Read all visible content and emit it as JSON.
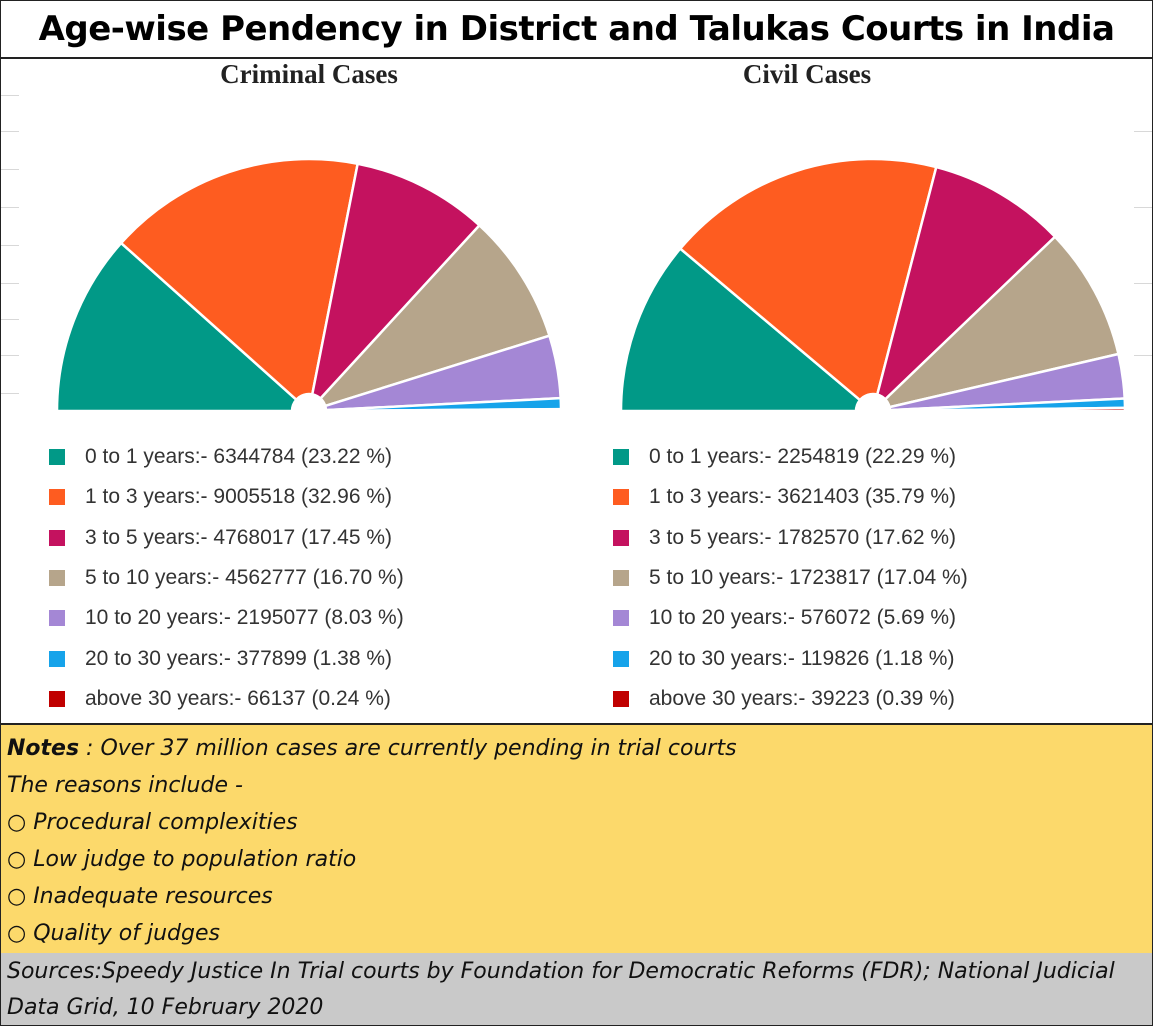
{
  "page": {
    "title": "Age-wise Pendency in District and Talukas Courts in India"
  },
  "chart_data": [
    {
      "type": "pie",
      "variant": "half-donut",
      "title": "Criminal  Cases",
      "categories": [
        "0 to 1 years",
        "1 to 3 years",
        "3 to 5 years",
        "5 to 10 years",
        "10 to 20 years",
        "20 to 30 years",
        "above 30 years"
      ],
      "values": [
        6344784,
        9005518,
        4768017,
        4562777,
        2195077,
        377899,
        66137
      ],
      "percents": [
        23.22,
        32.96,
        17.45,
        16.7,
        8.03,
        1.38,
        0.24
      ],
      "legend_labels": [
        "0 to 1 years:- 6344784 (23.22 %)",
        "1 to 3 years:- 9005518 (32.96 %)",
        "3 to 5 years:- 4768017 (17.45 %)",
        "5 to 10 years:- 4562777 (16.70 %)",
        "10 to 20 years:- 2195077 (8.03 %)",
        "20 to 30 years:- 377899 (1.38 %)",
        "above 30 years:- 66137 (0.24 %)"
      ],
      "colors": [
        "#019987",
        "#fe5c20",
        "#c4125f",
        "#b6a58b",
        "#a487d5",
        "#16a3ea",
        "#c00000"
      ],
      "legend": "bottom"
    },
    {
      "type": "pie",
      "variant": "half-donut",
      "title": "Civil Cases",
      "categories": [
        "0 to 1 years",
        "1 to 3 years",
        "3 to 5 years",
        "5 to 10 years",
        "10 to 20 years",
        "20 to 30 years",
        "above 30 years"
      ],
      "values": [
        2254819,
        3621403,
        1782570,
        1723817,
        576072,
        119826,
        39223
      ],
      "percents": [
        22.29,
        35.79,
        17.62,
        17.04,
        5.69,
        1.18,
        0.39
      ],
      "legend_labels": [
        "0 to 1 years:- 2254819 (22.29 %)",
        "1 to 3 years:- 3621403 (35.79 %)",
        "3 to 5 years:- 1782570 (17.62 %)",
        "5 to 10 years:- 1723817 (17.04 %)",
        "10 to 20 years:- 576072 (5.69 %)",
        "20 to 30 years:- 119826 (1.18 %)",
        "above 30 years:- 39223 (0.39 %)"
      ],
      "colors": [
        "#019987",
        "#fe5c20",
        "#c4125f",
        "#b6a58b",
        "#a487d5",
        "#16a3ea",
        "#c00000"
      ],
      "legend": "bottom"
    }
  ],
  "notes": {
    "label": "Notes",
    "text": " : Over 37 million cases are currently pending in trial courts",
    "reasons_intro": "The reasons include -",
    "reasons": [
      "○ Procedural complexities",
      "○ Low judge to population ratio",
      "○ Inadequate resources",
      "○ Quality of judges"
    ]
  },
  "sources": {
    "line1": "Sources:Speedy Justice In Trial courts by Foundation for Democratic Reforms (FDR);    National Judicial",
    "line2": "Data Grid, 10 February 2020"
  }
}
